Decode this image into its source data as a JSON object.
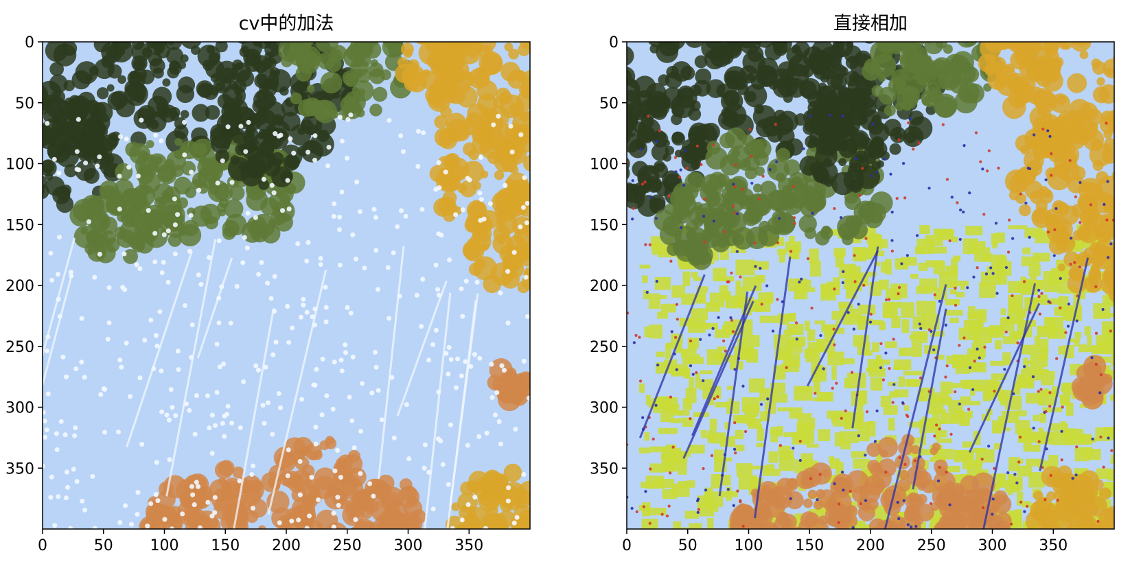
{
  "chart_data": [
    {
      "type": "image",
      "title": "cv中的加法",
      "xlim": [
        0,
        400
      ],
      "ylim": [
        400,
        0
      ],
      "x_ticks": [
        0,
        50,
        100,
        150,
        200,
        250,
        300,
        350
      ],
      "y_ticks": [
        0,
        50,
        100,
        150,
        200,
        250,
        300,
        350
      ],
      "x_tick_labels": [
        "0",
        "50",
        "100",
        "150",
        "200",
        "250",
        "300",
        "350"
      ],
      "y_tick_labels": [
        "0",
        "50",
        "100",
        "150",
        "200",
        "250",
        "300",
        "350"
      ],
      "grid": false,
      "palette": {
        "sky": "#b9d4f7",
        "highlight": "#f3f8ff",
        "foliage_dark": "#2b3a1d",
        "foliage_mid": "#5f7a36",
        "foliage_yellow": "#d9a62a",
        "foliage_orange": "#d2874a"
      }
    },
    {
      "type": "image",
      "title": "直接相加",
      "xlim": [
        0,
        400
      ],
      "ylim": [
        400,
        0
      ],
      "x_ticks": [
        0,
        50,
        100,
        150,
        200,
        250,
        300,
        350
      ],
      "y_ticks": [
        0,
        50,
        100,
        150,
        200,
        250,
        300,
        350
      ],
      "x_tick_labels": [
        "0",
        "50",
        "100",
        "150",
        "200",
        "250",
        "300",
        "350"
      ],
      "y_tick_labels": [
        "0",
        "50",
        "100",
        "150",
        "200",
        "250",
        "300",
        "350"
      ],
      "grid": false,
      "palette": {
        "sky": "#b9d4f7",
        "overflow": "#c9dc3a",
        "noise_red": "#d23a2a",
        "noise_blue": "#2b2fa8",
        "foliage_dark": "#2b3a1d",
        "foliage_mid": "#5f7a36",
        "foliage_yellow": "#d9a62a",
        "foliage_orange": "#d2874a"
      }
    }
  ]
}
